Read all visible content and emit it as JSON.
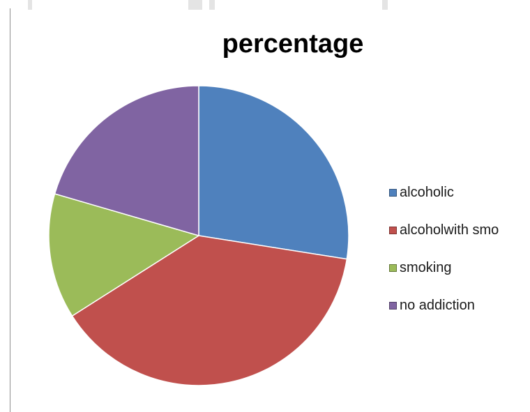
{
  "chart_data": {
    "type": "pie",
    "title": "percentage",
    "start_angle_deg": 0,
    "direction": "clockwise",
    "legend_position": "right",
    "slices": [
      {
        "label": "alcoholic",
        "value": 27.5,
        "color": "#4f81bd"
      },
      {
        "label": "alcoholwith smo",
        "value": 38.5,
        "color": "#c0504d"
      },
      {
        "label": "smoking",
        "value": 13.5,
        "color": "#9bbb59"
      },
      {
        "label": "no addiction",
        "value": 20.5,
        "color": "#8064a2"
      }
    ]
  }
}
